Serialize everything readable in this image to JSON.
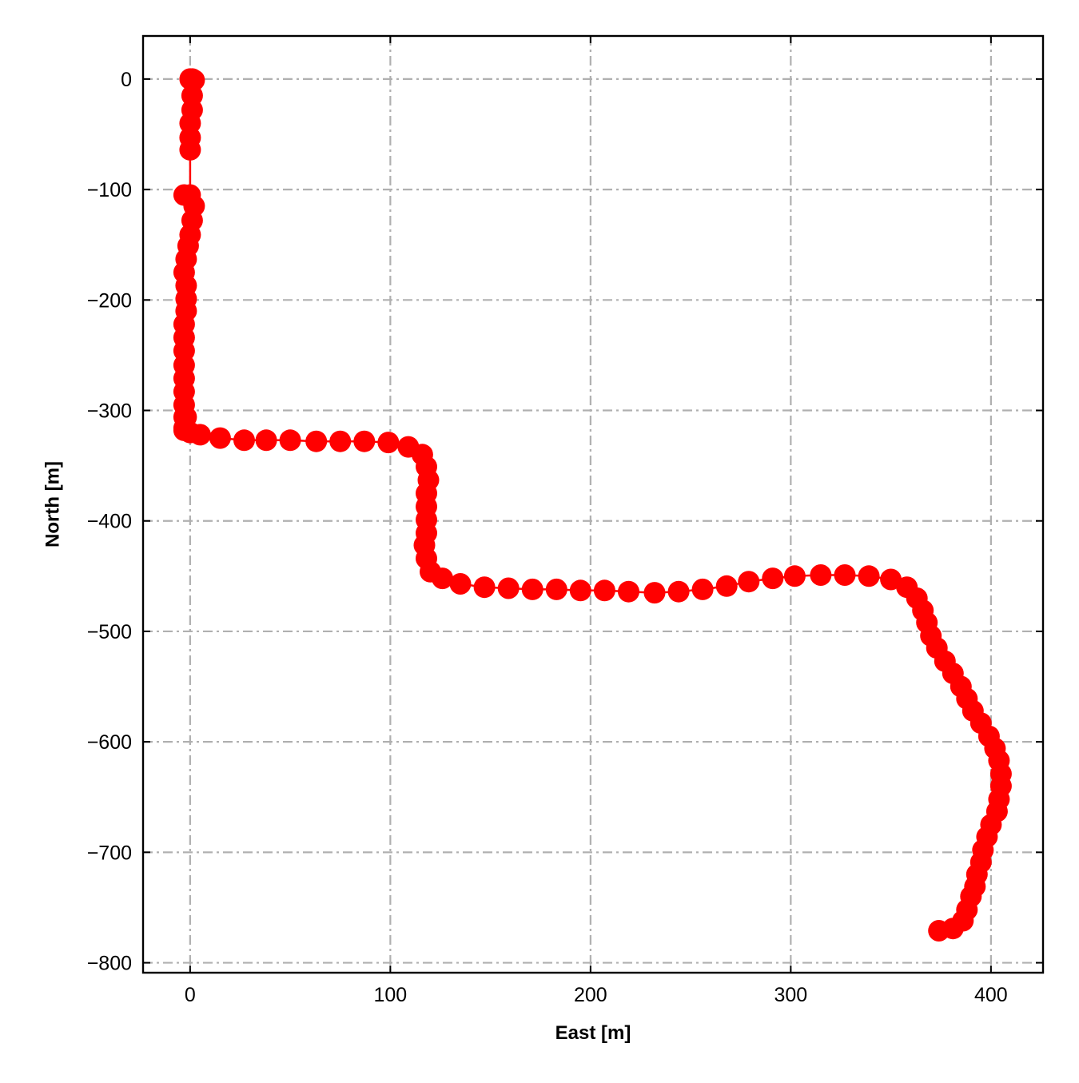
{
  "chart_data": {
    "type": "line",
    "title": "",
    "xlabel": "East [m]",
    "ylabel": "North [m]",
    "xlim": [
      -23.5,
      426
    ],
    "ylim": [
      -809,
      39
    ],
    "xticks": [
      0,
      100,
      200,
      300,
      400
    ],
    "yticks": [
      0,
      -100,
      -200,
      -300,
      -400,
      -500,
      -600,
      -700,
      -800
    ],
    "xtick_labels": [
      "0",
      "100",
      "200",
      "300",
      "400"
    ],
    "ytick_labels": [
      "0",
      "−100",
      "−200",
      "−300",
      "−400",
      "−500",
      "−600",
      "−700",
      "−800"
    ],
    "grid": true,
    "legend": "none",
    "series": [
      {
        "color": "#ff0000",
        "marker": "circle",
        "x": [
          0,
          1,
          2,
          1,
          1,
          0,
          0,
          0,
          0,
          -3,
          2,
          1,
          0,
          -1,
          -2,
          -3,
          -2,
          -2,
          -2,
          -3,
          -3,
          -3,
          -3,
          -3,
          -3,
          -3,
          -2,
          -3,
          -3,
          -3,
          0,
          5,
          15,
          27,
          38,
          50,
          63,
          75,
          87,
          99,
          109,
          116,
          118,
          119,
          118,
          118,
          118,
          118,
          117,
          118,
          120,
          126,
          135,
          147,
          159,
          171,
          183,
          195,
          207,
          219,
          232,
          244,
          256,
          268,
          279,
          291,
          302,
          315,
          327,
          339,
          350,
          358,
          363,
          366,
          368,
          370,
          373,
          377,
          381,
          385,
          388,
          391,
          395,
          399,
          402,
          404,
          405,
          405,
          404,
          403,
          400,
          398,
          396,
          395,
          393,
          392,
          390,
          388,
          386,
          381,
          374
        ],
        "y": [
          0,
          0,
          -1,
          -15,
          -28,
          -40,
          -53,
          -64,
          -105,
          -105,
          -115,
          -128,
          -141,
          -151,
          -163,
          -175,
          -187,
          -199,
          -210,
          -222,
          -234,
          -246,
          -259,
          -271,
          -283,
          -295,
          -306,
          -306,
          -316,
          -318,
          -320,
          -322,
          -325,
          -327,
          -327,
          -327,
          -328,
          -328,
          -328,
          -329,
          -333,
          -340,
          -351,
          -363,
          -375,
          -387,
          -399,
          -411,
          -422,
          -434,
          -446,
          -452,
          -457,
          -460,
          -461,
          -462,
          -462,
          -463,
          -463,
          -464,
          -465,
          -464,
          -462,
          -459,
          -455,
          -452,
          -450,
          -449,
          -449,
          -450,
          -453,
          -460,
          -470,
          -481,
          -492,
          -504,
          -515,
          -527,
          -538,
          -550,
          -561,
          -572,
          -583,
          -595,
          -606,
          -617,
          -629,
          -640,
          -652,
          -663,
          -675,
          -686,
          -698,
          -709,
          -720,
          -731,
          -740,
          -752,
          -762,
          -769,
          -771
        ]
      }
    ]
  }
}
